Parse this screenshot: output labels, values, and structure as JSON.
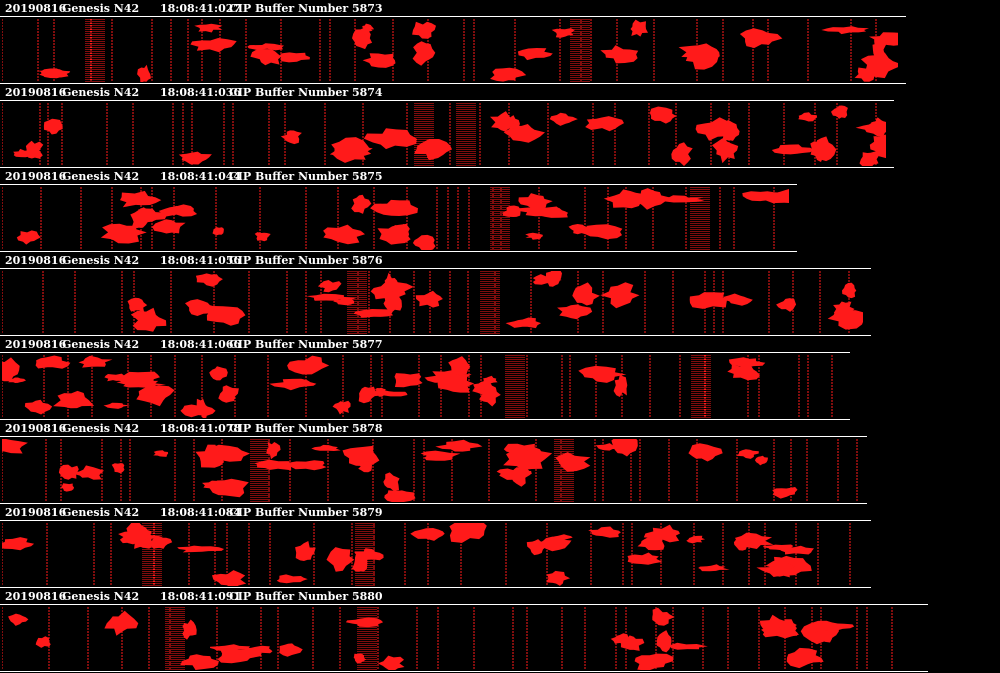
{
  "colors": {
    "background": "#000000",
    "particle": "#ff1a1a",
    "text": "#ffffff",
    "rule": "#ffffff"
  },
  "strips": [
    {
      "date": "20190816",
      "probe": "Genesis N42",
      "time": "18:08:41:027",
      "buffer": "CIP Buffer Number 5873"
    },
    {
      "date": "20190816",
      "probe": "Genesis N42",
      "time": "18:08:41:036",
      "buffer": "CIP Buffer Number 5874"
    },
    {
      "date": "20190816",
      "probe": "Genesis N42",
      "time": "18:08:41:044",
      "buffer": "CIP Buffer Number 5875"
    },
    {
      "date": "20190816",
      "probe": "Genesis N42",
      "time": "18:08:41:056",
      "buffer": "CIP Buffer Number 5876"
    },
    {
      "date": "20190816",
      "probe": "Genesis N42",
      "time": "18:08:41:066",
      "buffer": "CIP Buffer Number 5877"
    },
    {
      "date": "20190816",
      "probe": "Genesis N42",
      "time": "18:08:41:078",
      "buffer": "CIP Buffer Number 5878"
    },
    {
      "date": "20190816",
      "probe": "Genesis N42",
      "time": "18:08:41:084",
      "buffer": "CIP Buffer Number 5879"
    },
    {
      "date": "20190816",
      "probe": "Genesis N42",
      "time": "18:08:41:091",
      "buffer": "CIP Buffer Number 5880"
    }
  ]
}
